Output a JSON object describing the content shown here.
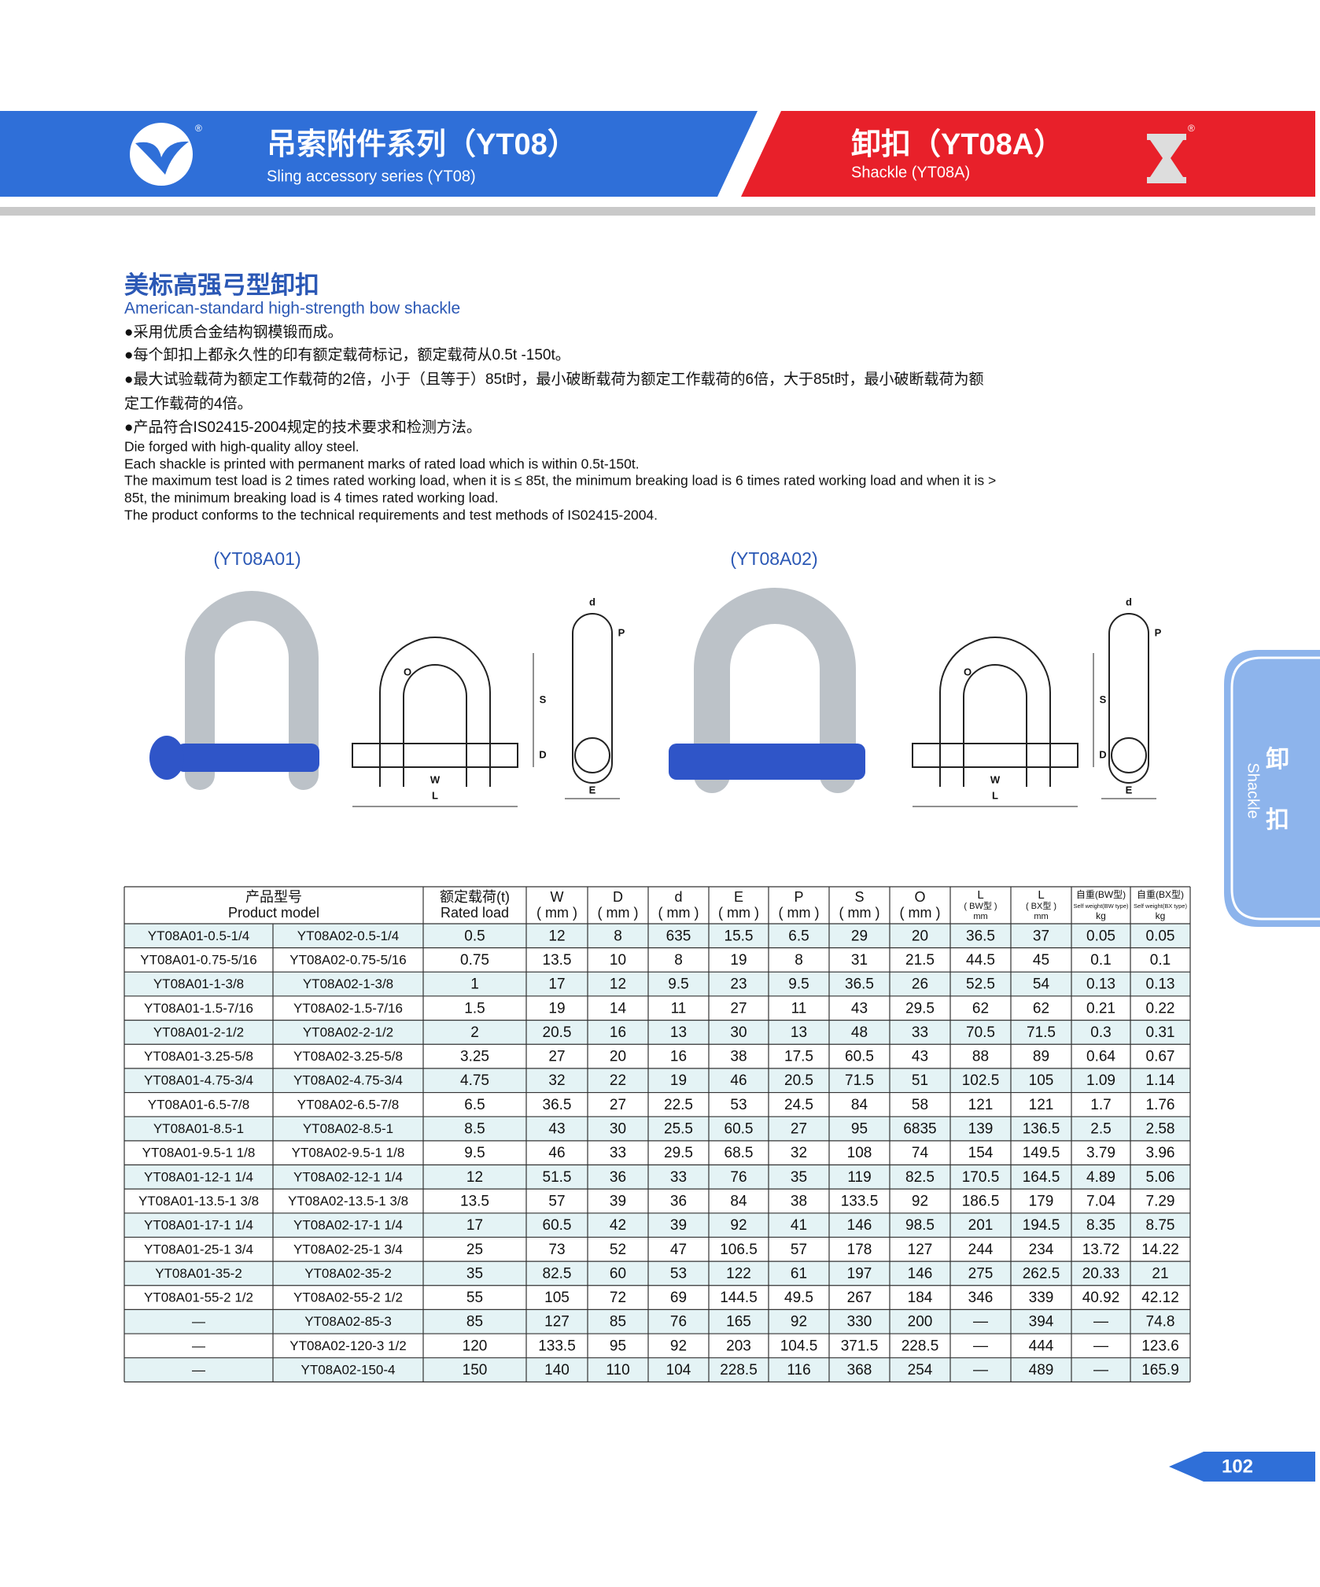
{
  "header": {
    "left_title": "吊索附件系列（YT08）",
    "left_subtitle": "Sling accessory series (YT08)",
    "left_mark": "®",
    "right_title": "卸扣（YT08A）",
    "right_subtitle": "Shackle (YT08A)",
    "right_mark": "®"
  },
  "section": {
    "title": "美标高强弓型卸扣",
    "subtitle": "American-standard high-strength bow shackle",
    "zh_lines": [
      "●采用优质合金结构钢模锻而成。",
      "●每个卸扣上都永久性的印有额定载荷标记，额定载荷从0.5t -150t。",
      "●最大试验载荷为额定工作载荷的2倍，小于（且等于）85t时，最小破断载荷为额定工作载荷的6倍，大于85t时，最小破断载荷为额",
      "定工作载荷的4倍。",
      "●产品符合IS02415-2004规定的技术要求和检测方法。"
    ],
    "en_lines": [
      "Die forged with high-quality alloy steel.",
      "Each shackle is printed with permanent marks of rated load which is within 0.5t-150t.",
      "The maximum test load is 2 times rated working load, when it is ≤ 85t, the minimum breaking load is 6 times rated working load and when it is >",
      "85t, the minimum breaking load is 4 times rated working load.",
      "The product conforms to the technical requirements and test methods of IS02415-2004."
    ]
  },
  "figures": [
    {
      "caption": "(YT08A01)",
      "labels": [
        "O",
        "S",
        "D",
        "W",
        "L",
        "d",
        "P",
        "E"
      ]
    },
    {
      "caption": "(YT08A02)",
      "labels": [
        "O",
        "S",
        "D",
        "W",
        "L",
        "d",
        "P",
        "E"
      ]
    }
  ],
  "table": {
    "header": [
      [
        "产品型号",
        "Product model"
      ],
      [
        "额定载荷(t)",
        "Rated load"
      ],
      [
        "W",
        "( mm )"
      ],
      [
        "D",
        "( mm )"
      ],
      [
        "d",
        "( mm )"
      ],
      [
        "E",
        "( mm )"
      ],
      [
        "P",
        "( mm )"
      ],
      [
        "S",
        "( mm )"
      ],
      [
        "O",
        "( mm )"
      ],
      [
        "L",
        "( BW型 )",
        "mm"
      ],
      [
        "L",
        "( BX型 )",
        "mm"
      ],
      [
        "自重(BW型)",
        "Self weight(BW type)",
        "kg"
      ],
      [
        "自重(BX型)",
        "Self weight(BX type)",
        "kg"
      ]
    ],
    "rows": [
      [
        "YT08A01-0.5-1/4",
        "YT08A02-0.5-1/4",
        "0.5",
        "12",
        "8",
        "635",
        "15.5",
        "6.5",
        "29",
        "20",
        "36.5",
        "37",
        "0.05",
        "0.05"
      ],
      [
        "YT08A01-0.75-5/16",
        "YT08A02-0.75-5/16",
        "0.75",
        "13.5",
        "10",
        "8",
        "19",
        "8",
        "31",
        "21.5",
        "44.5",
        "45",
        "0.1",
        "0.1"
      ],
      [
        "YT08A01-1-3/8",
        "YT08A02-1-3/8",
        "1",
        "17",
        "12",
        "9.5",
        "23",
        "9.5",
        "36.5",
        "26",
        "52.5",
        "54",
        "0.13",
        "0.13"
      ],
      [
        "YT08A01-1.5-7/16",
        "YT08A02-1.5-7/16",
        "1.5",
        "19",
        "14",
        "11",
        "27",
        "11",
        "43",
        "29.5",
        "62",
        "62",
        "0.21",
        "0.22"
      ],
      [
        "YT08A01-2-1/2",
        "YT08A02-2-1/2",
        "2",
        "20.5",
        "16",
        "13",
        "30",
        "13",
        "48",
        "33",
        "70.5",
        "71.5",
        "0.3",
        "0.31"
      ],
      [
        "YT08A01-3.25-5/8",
        "YT08A02-3.25-5/8",
        "3.25",
        "27",
        "20",
        "16",
        "38",
        "17.5",
        "60.5",
        "43",
        "88",
        "89",
        "0.64",
        "0.67"
      ],
      [
        "YT08A01-4.75-3/4",
        "YT08A02-4.75-3/4",
        "4.75",
        "32",
        "22",
        "19",
        "46",
        "20.5",
        "71.5",
        "51",
        "102.5",
        "105",
        "1.09",
        "1.14"
      ],
      [
        "YT08A01-6.5-7/8",
        "YT08A02-6.5-7/8",
        "6.5",
        "36.5",
        "27",
        "22.5",
        "53",
        "24.5",
        "84",
        "58",
        "121",
        "121",
        "1.7",
        "1.76"
      ],
      [
        "YT08A01-8.5-1",
        "YT08A02-8.5-1",
        "8.5",
        "43",
        "30",
        "25.5",
        "60.5",
        "27",
        "95",
        "6835",
        "139",
        "136.5",
        "2.5",
        "2.58"
      ],
      [
        "YT08A01-9.5-1 1/8",
        "YT08A02-9.5-1 1/8",
        "9.5",
        "46",
        "33",
        "29.5",
        "68.5",
        "32",
        "108",
        "74",
        "154",
        "149.5",
        "3.79",
        "3.96"
      ],
      [
        "YT08A01-12-1 1/4",
        "YT08A02-12-1 1/4",
        "12",
        "51.5",
        "36",
        "33",
        "76",
        "35",
        "119",
        "82.5",
        "170.5",
        "164.5",
        "4.89",
        "5.06"
      ],
      [
        "YT08A01-13.5-1 3/8",
        "YT08A02-13.5-1 3/8",
        "13.5",
        "57",
        "39",
        "36",
        "84",
        "38",
        "133.5",
        "92",
        "186.5",
        "179",
        "7.04",
        "7.29"
      ],
      [
        "YT08A01-17-1 1/4",
        "YT08A02-17-1 1/4",
        "17",
        "60.5",
        "42",
        "39",
        "92",
        "41",
        "146",
        "98.5",
        "201",
        "194.5",
        "8.35",
        "8.75"
      ],
      [
        "YT08A01-25-1 3/4",
        "YT08A02-25-1 3/4",
        "25",
        "73",
        "52",
        "47",
        "106.5",
        "57",
        "178",
        "127",
        "244",
        "234",
        "13.72",
        "14.22"
      ],
      [
        "YT08A01-35-2",
        "YT08A02-35-2",
        "35",
        "82.5",
        "60",
        "53",
        "122",
        "61",
        "197",
        "146",
        "275",
        "262.5",
        "20.33",
        "21"
      ],
      [
        "YT08A01-55-2 1/2",
        "YT08A02-55-2 1/2",
        "55",
        "105",
        "72",
        "69",
        "144.5",
        "49.5",
        "267",
        "184",
        "346",
        "339",
        "40.92",
        "42.12"
      ],
      [
        "—",
        "YT08A02-85-3",
        "85",
        "127",
        "85",
        "76",
        "165",
        "92",
        "330",
        "200",
        "—",
        "394",
        "—",
        "74.8"
      ],
      [
        "—",
        "YT08A02-120-3 1/2",
        "120",
        "133.5",
        "95",
        "92",
        "203",
        "104.5",
        "371.5",
        "228.5",
        "—",
        "444",
        "—",
        "123.6"
      ],
      [
        "—",
        "YT08A02-150-4",
        "150",
        "140",
        "110",
        "104",
        "228.5",
        "116",
        "368",
        "254",
        "—",
        "489",
        "—",
        "165.9"
      ]
    ]
  },
  "side_tab": {
    "zh_top": "卸",
    "zh_bottom": "扣",
    "en": "Shackle"
  },
  "page_number": "102"
}
